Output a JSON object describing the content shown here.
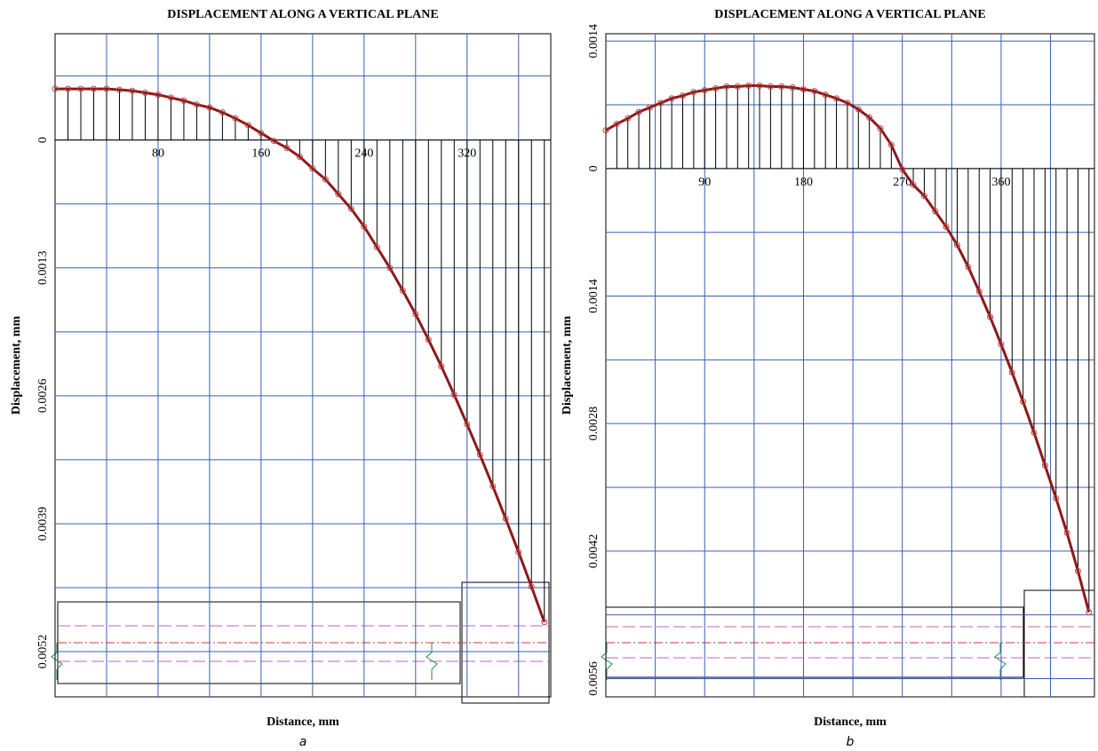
{
  "chart_data": [
    {
      "type": "line",
      "title": "DISPLACEMENT ALONG A VERTICAL PLANE",
      "x_label": "Distance, mm",
      "y_label": "Displacement, mm",
      "caption": "a",
      "color": "#8b1a1a",
      "grid": true,
      "markers": true,
      "stems": true,
      "y_inverted": true,
      "xlim": [
        0,
        385
      ],
      "ylim": [
        -0.00108,
        0.00566
      ],
      "xticks": [
        80,
        160,
        240,
        320
      ],
      "yticks": [
        0,
        0.0013,
        0.0026,
        0.0039,
        0.0052
      ],
      "x": [
        0,
        10,
        20,
        30,
        40,
        50,
        60,
        70,
        80,
        90,
        100,
        110,
        120,
        130,
        140,
        150,
        160,
        170,
        180,
        190,
        200,
        210,
        220,
        230,
        240,
        250,
        260,
        270,
        280,
        290,
        300,
        310,
        320,
        330,
        340,
        350,
        360,
        370,
        380
      ],
      "values": [
        -0.00052,
        -0.00052,
        -0.00052,
        -0.00052,
        -0.00052,
        -0.00051,
        -0.0005,
        -0.00048,
        -0.00046,
        -0.00043,
        -0.0004,
        -0.00036,
        -0.00033,
        -0.00028,
        -0.00022,
        -0.00015,
        -7e-05,
        1e-05,
        8e-05,
        0.00017,
        0.00029,
        0.0004,
        0.00055,
        0.0007,
        0.00088,
        0.00109,
        0.0013,
        0.00153,
        0.00177,
        0.00203,
        0.0023,
        0.00259,
        0.00289,
        0.0032,
        0.00352,
        0.00385,
        0.00419,
        0.00454,
        0.0049
      ]
    },
    {
      "type": "line",
      "title": "DISPLACEMENT ALONG A VERTICAL PLANE",
      "x_label": "Distance, mm",
      "y_label": "Displacement, mm",
      "caption": "b",
      "color": "#8b1a1a",
      "grid": true,
      "markers": true,
      "stems": true,
      "y_inverted": true,
      "xlim": [
        0,
        445
      ],
      "ylim": [
        -0.00148,
        0.0058
      ],
      "xticks": [
        90,
        180,
        270,
        360
      ],
      "yticks": [
        {
          "value": -0.0014,
          "label": "0.0014"
        },
        0,
        0.0014,
        0.0028,
        0.0042,
        0.0056
      ],
      "x": [
        0,
        10,
        20,
        30,
        40,
        50,
        60,
        70,
        80,
        90,
        100,
        110,
        120,
        130,
        140,
        150,
        160,
        170,
        180,
        190,
        200,
        210,
        220,
        230,
        240,
        250,
        260,
        270,
        280,
        290,
        300,
        310,
        320,
        330,
        340,
        350,
        360,
        370,
        380,
        390,
        400,
        410,
        420,
        430,
        440
      ],
      "values": [
        -0.00042,
        -0.00049,
        -0.00055,
        -0.00062,
        -0.00067,
        -0.00072,
        -0.00077,
        -0.0008,
        -0.00084,
        -0.00086,
        -0.00088,
        -0.0009,
        -0.0009,
        -0.00091,
        -0.00091,
        -0.0009,
        -0.0009,
        -0.00089,
        -0.00087,
        -0.00085,
        -0.00081,
        -0.00077,
        -0.00072,
        -0.00065,
        -0.00056,
        -0.00044,
        -0.00026,
        1e-05,
        0.00018,
        0.0003,
        0.00047,
        0.00064,
        0.00084,
        0.00108,
        0.00135,
        0.00163,
        0.00193,
        0.00224,
        0.00256,
        0.0029,
        0.00326,
        0.00362,
        0.004,
        0.00442,
        0.00487
      ]
    }
  ]
}
